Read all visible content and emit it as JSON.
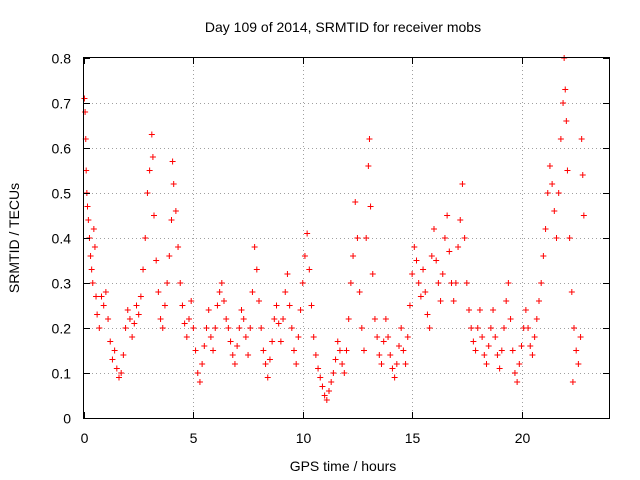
{
  "chart_data": {
    "type": "scatter",
    "title": "Day 109 of 2014, SRMTID for receiver mobs",
    "xlabel": "GPS time / hours",
    "ylabel": "SRMTID / TECUs",
    "xlim": [
      0,
      24
    ],
    "ylim": [
      0,
      0.8
    ],
    "xticks": [
      0,
      5,
      10,
      15,
      20
    ],
    "xtick_labels": [
      "0",
      "5",
      "10",
      "15",
      "20"
    ],
    "yticks": [
      0,
      0.1,
      0.2,
      0.3,
      0.4,
      0.5,
      0.6,
      0.7,
      0.8
    ],
    "ytick_labels": [
      "0",
      "0.1",
      "0.2",
      "0.3",
      "0.4",
      "0.5",
      "0.6",
      "0.7",
      "0.8"
    ],
    "grid": true,
    "marker": "+",
    "color": "#ff0000",
    "series": [
      {
        "name": "SRMTID",
        "points": [
          [
            0.02,
            0.71
          ],
          [
            0.05,
            0.68
          ],
          [
            0.08,
            0.62
          ],
          [
            0.1,
            0.55
          ],
          [
            0.13,
            0.5
          ],
          [
            0.16,
            0.47
          ],
          [
            0.2,
            0.44
          ],
          [
            0.25,
            0.4
          ],
          [
            0.3,
            0.36
          ],
          [
            0.35,
            0.33
          ],
          [
            0.4,
            0.3
          ],
          [
            0.45,
            0.42
          ],
          [
            0.5,
            0.38
          ],
          [
            0.55,
            0.27
          ],
          [
            0.6,
            0.23
          ],
          [
            0.7,
            0.2
          ],
          [
            0.8,
            0.27
          ],
          [
            0.9,
            0.25
          ],
          [
            1.0,
            0.28
          ],
          [
            1.1,
            0.22
          ],
          [
            1.2,
            0.17
          ],
          [
            1.3,
            0.13
          ],
          [
            1.4,
            0.15
          ],
          [
            1.5,
            0.11
          ],
          [
            1.6,
            0.09
          ],
          [
            1.7,
            0.1
          ],
          [
            1.8,
            0.14
          ],
          [
            1.9,
            0.2
          ],
          [
            2.0,
            0.24
          ],
          [
            2.1,
            0.22
          ],
          [
            2.2,
            0.18
          ],
          [
            2.3,
            0.21
          ],
          [
            2.4,
            0.25
          ],
          [
            2.5,
            0.23
          ],
          [
            2.6,
            0.27
          ],
          [
            2.7,
            0.33
          ],
          [
            2.8,
            0.4
          ],
          [
            2.9,
            0.5
          ],
          [
            3.0,
            0.55
          ],
          [
            3.1,
            0.63
          ],
          [
            3.15,
            0.58
          ],
          [
            3.2,
            0.45
          ],
          [
            3.3,
            0.35
          ],
          [
            3.4,
            0.28
          ],
          [
            3.5,
            0.22
          ],
          [
            3.6,
            0.2
          ],
          [
            3.7,
            0.25
          ],
          [
            3.8,
            0.3
          ],
          [
            3.9,
            0.36
          ],
          [
            4.0,
            0.44
          ],
          [
            4.05,
            0.57
          ],
          [
            4.1,
            0.52
          ],
          [
            4.2,
            0.46
          ],
          [
            4.3,
            0.38
          ],
          [
            4.4,
            0.3
          ],
          [
            4.5,
            0.25
          ],
          [
            4.6,
            0.21
          ],
          [
            4.7,
            0.18
          ],
          [
            4.8,
            0.22
          ],
          [
            4.9,
            0.26
          ],
          [
            5.0,
            0.2
          ],
          [
            5.1,
            0.15
          ],
          [
            5.2,
            0.1
          ],
          [
            5.3,
            0.08
          ],
          [
            5.4,
            0.12
          ],
          [
            5.5,
            0.16
          ],
          [
            5.6,
            0.2
          ],
          [
            5.7,
            0.24
          ],
          [
            5.8,
            0.18
          ],
          [
            5.9,
            0.15
          ],
          [
            6.0,
            0.2
          ],
          [
            6.1,
            0.25
          ],
          [
            6.2,
            0.28
          ],
          [
            6.3,
            0.3
          ],
          [
            6.4,
            0.26
          ],
          [
            6.5,
            0.22
          ],
          [
            6.6,
            0.2
          ],
          [
            6.7,
            0.17
          ],
          [
            6.8,
            0.14
          ],
          [
            6.9,
            0.12
          ],
          [
            7.0,
            0.16
          ],
          [
            7.1,
            0.2
          ],
          [
            7.2,
            0.24
          ],
          [
            7.3,
            0.22
          ],
          [
            7.4,
            0.18
          ],
          [
            7.5,
            0.14
          ],
          [
            7.6,
            0.2
          ],
          [
            7.7,
            0.28
          ],
          [
            7.8,
            0.38
          ],
          [
            7.9,
            0.33
          ],
          [
            8.0,
            0.26
          ],
          [
            8.1,
            0.2
          ],
          [
            8.2,
            0.15
          ],
          [
            8.3,
            0.12
          ],
          [
            8.4,
            0.09
          ],
          [
            8.5,
            0.13
          ],
          [
            8.6,
            0.17
          ],
          [
            8.7,
            0.22
          ],
          [
            8.8,
            0.25
          ],
          [
            8.9,
            0.21
          ],
          [
            9.0,
            0.17
          ],
          [
            9.1,
            0.22
          ],
          [
            9.2,
            0.28
          ],
          [
            9.3,
            0.32
          ],
          [
            9.4,
            0.25
          ],
          [
            9.5,
            0.2
          ],
          [
            9.6,
            0.15
          ],
          [
            9.7,
            0.12
          ],
          [
            9.8,
            0.18
          ],
          [
            9.9,
            0.24
          ],
          [
            10.0,
            0.3
          ],
          [
            10.1,
            0.36
          ],
          [
            10.2,
            0.41
          ],
          [
            10.3,
            0.33
          ],
          [
            10.4,
            0.25
          ],
          [
            10.5,
            0.18
          ],
          [
            10.6,
            0.14
          ],
          [
            10.7,
            0.11
          ],
          [
            10.8,
            0.09
          ],
          [
            10.9,
            0.07
          ],
          [
            11.0,
            0.05
          ],
          [
            11.1,
            0.04
          ],
          [
            11.2,
            0.06
          ],
          [
            11.3,
            0.08
          ],
          [
            11.4,
            0.1
          ],
          [
            11.5,
            0.13
          ],
          [
            11.6,
            0.17
          ],
          [
            11.7,
            0.15
          ],
          [
            11.8,
            0.12
          ],
          [
            11.9,
            0.1
          ],
          [
            12.0,
            0.15
          ],
          [
            12.1,
            0.22
          ],
          [
            12.2,
            0.3
          ],
          [
            12.3,
            0.36
          ],
          [
            12.4,
            0.48
          ],
          [
            12.5,
            0.4
          ],
          [
            12.6,
            0.28
          ],
          [
            12.7,
            0.2
          ],
          [
            12.8,
            0.15
          ],
          [
            12.9,
            0.4
          ],
          [
            13.0,
            0.56
          ],
          [
            13.05,
            0.62
          ],
          [
            13.1,
            0.47
          ],
          [
            13.2,
            0.32
          ],
          [
            13.3,
            0.22
          ],
          [
            13.4,
            0.18
          ],
          [
            13.5,
            0.14
          ],
          [
            13.6,
            0.12
          ],
          [
            13.7,
            0.17
          ],
          [
            13.8,
            0.22
          ],
          [
            13.9,
            0.18
          ],
          [
            14.0,
            0.14
          ],
          [
            14.1,
            0.11
          ],
          [
            14.2,
            0.09
          ],
          [
            14.3,
            0.12
          ],
          [
            14.4,
            0.16
          ],
          [
            14.5,
            0.2
          ],
          [
            14.6,
            0.15
          ],
          [
            14.7,
            0.12
          ],
          [
            14.8,
            0.18
          ],
          [
            14.9,
            0.25
          ],
          [
            15.0,
            0.32
          ],
          [
            15.1,
            0.38
          ],
          [
            15.2,
            0.35
          ],
          [
            15.3,
            0.3
          ],
          [
            15.4,
            0.27
          ],
          [
            15.5,
            0.33
          ],
          [
            15.6,
            0.28
          ],
          [
            15.7,
            0.23
          ],
          [
            15.8,
            0.2
          ],
          [
            15.9,
            0.36
          ],
          [
            16.0,
            0.42
          ],
          [
            16.1,
            0.35
          ],
          [
            16.2,
            0.3
          ],
          [
            16.3,
            0.26
          ],
          [
            16.4,
            0.32
          ],
          [
            16.5,
            0.4
          ],
          [
            16.6,
            0.45
          ],
          [
            16.7,
            0.37
          ],
          [
            16.8,
            0.3
          ],
          [
            16.9,
            0.26
          ],
          [
            17.0,
            0.3
          ],
          [
            17.1,
            0.38
          ],
          [
            17.2,
            0.44
          ],
          [
            17.3,
            0.52
          ],
          [
            17.4,
            0.4
          ],
          [
            17.5,
            0.3
          ],
          [
            17.6,
            0.24
          ],
          [
            17.7,
            0.2
          ],
          [
            17.8,
            0.17
          ],
          [
            17.9,
            0.15
          ],
          [
            18.0,
            0.2
          ],
          [
            18.1,
            0.24
          ],
          [
            18.2,
            0.18
          ],
          [
            18.3,
            0.14
          ],
          [
            18.4,
            0.12
          ],
          [
            18.5,
            0.16
          ],
          [
            18.6,
            0.2
          ],
          [
            18.7,
            0.24
          ],
          [
            18.8,
            0.18
          ],
          [
            18.9,
            0.14
          ],
          [
            19.0,
            0.11
          ],
          [
            19.1,
            0.15
          ],
          [
            19.2,
            0.2
          ],
          [
            19.3,
            0.26
          ],
          [
            19.4,
            0.3
          ],
          [
            19.5,
            0.22
          ],
          [
            19.6,
            0.15
          ],
          [
            19.7,
            0.1
          ],
          [
            19.8,
            0.08
          ],
          [
            19.9,
            0.12
          ],
          [
            20.0,
            0.16
          ],
          [
            20.1,
            0.2
          ],
          [
            20.2,
            0.24
          ],
          [
            20.3,
            0.2
          ],
          [
            20.4,
            0.16
          ],
          [
            20.5,
            0.14
          ],
          [
            20.6,
            0.18
          ],
          [
            20.7,
            0.22
          ],
          [
            20.8,
            0.26
          ],
          [
            20.9,
            0.3
          ],
          [
            21.0,
            0.36
          ],
          [
            21.1,
            0.42
          ],
          [
            21.2,
            0.5
          ],
          [
            21.3,
            0.56
          ],
          [
            21.4,
            0.52
          ],
          [
            21.5,
            0.46
          ],
          [
            21.6,
            0.4
          ],
          [
            21.7,
            0.5
          ],
          [
            21.8,
            0.62
          ],
          [
            21.9,
            0.7
          ],
          [
            21.95,
            0.8
          ],
          [
            22.0,
            0.73
          ],
          [
            22.05,
            0.66
          ],
          [
            22.1,
            0.55
          ],
          [
            22.2,
            0.4
          ],
          [
            22.3,
            0.28
          ],
          [
            22.35,
            0.08
          ],
          [
            22.4,
            0.2
          ],
          [
            22.5,
            0.15
          ],
          [
            22.6,
            0.12
          ],
          [
            22.7,
            0.18
          ],
          [
            22.75,
            0.62
          ],
          [
            22.8,
            0.54
          ],
          [
            22.85,
            0.45
          ]
        ]
      }
    ]
  }
}
